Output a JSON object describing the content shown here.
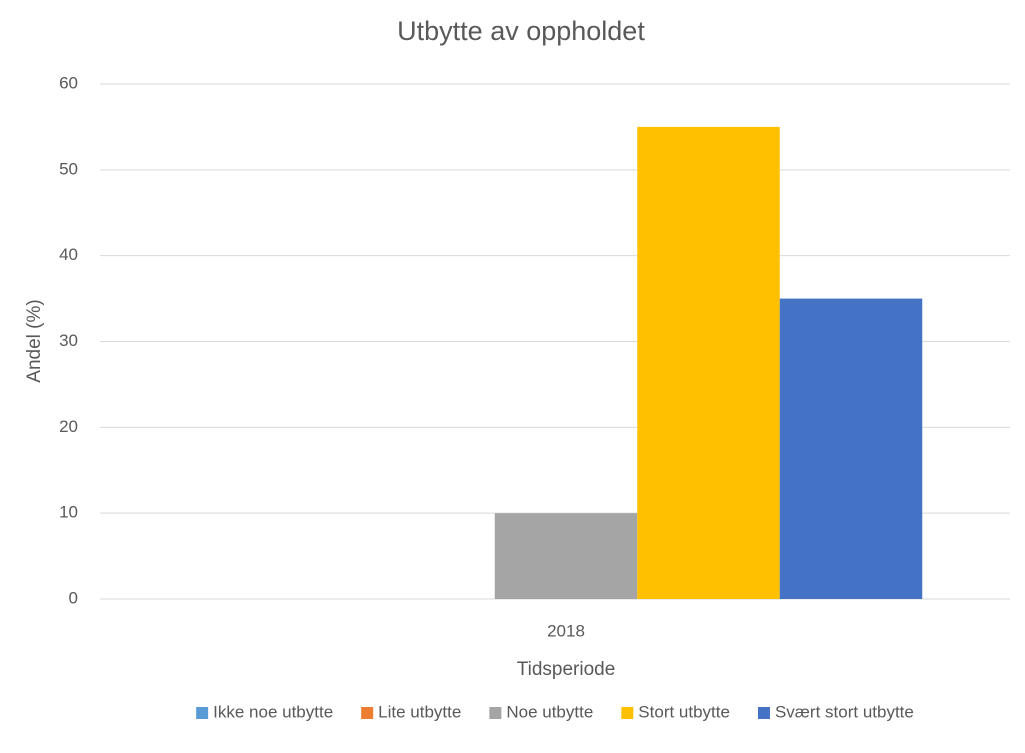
{
  "chart_data": {
    "type": "bar",
    "title": "Utbytte av oppholdet",
    "x_label": "Tidsperiode",
    "y_label": "Andel (%)",
    "categories": [
      "2018"
    ],
    "series": [
      {
        "name": "Ikke noe utbytte",
        "color": "#5b9bd5",
        "values": [
          0
        ]
      },
      {
        "name": "Lite utbytte",
        "color": "#ed7d31",
        "values": [
          0
        ]
      },
      {
        "name": "Noe utbytte",
        "color": "#a5a5a5",
        "values": [
          10
        ]
      },
      {
        "name": "Stort utbytte",
        "color": "#ffc000",
        "values": [
          55
        ]
      },
      {
        "name": "Svært stort utbytte",
        "color": "#4472c4",
        "values": [
          35
        ]
      }
    ],
    "ylim": [
      0,
      60
    ],
    "yticks": [
      0,
      10,
      20,
      30,
      40,
      50,
      60
    ],
    "grid": true,
    "legend": "bottom"
  }
}
